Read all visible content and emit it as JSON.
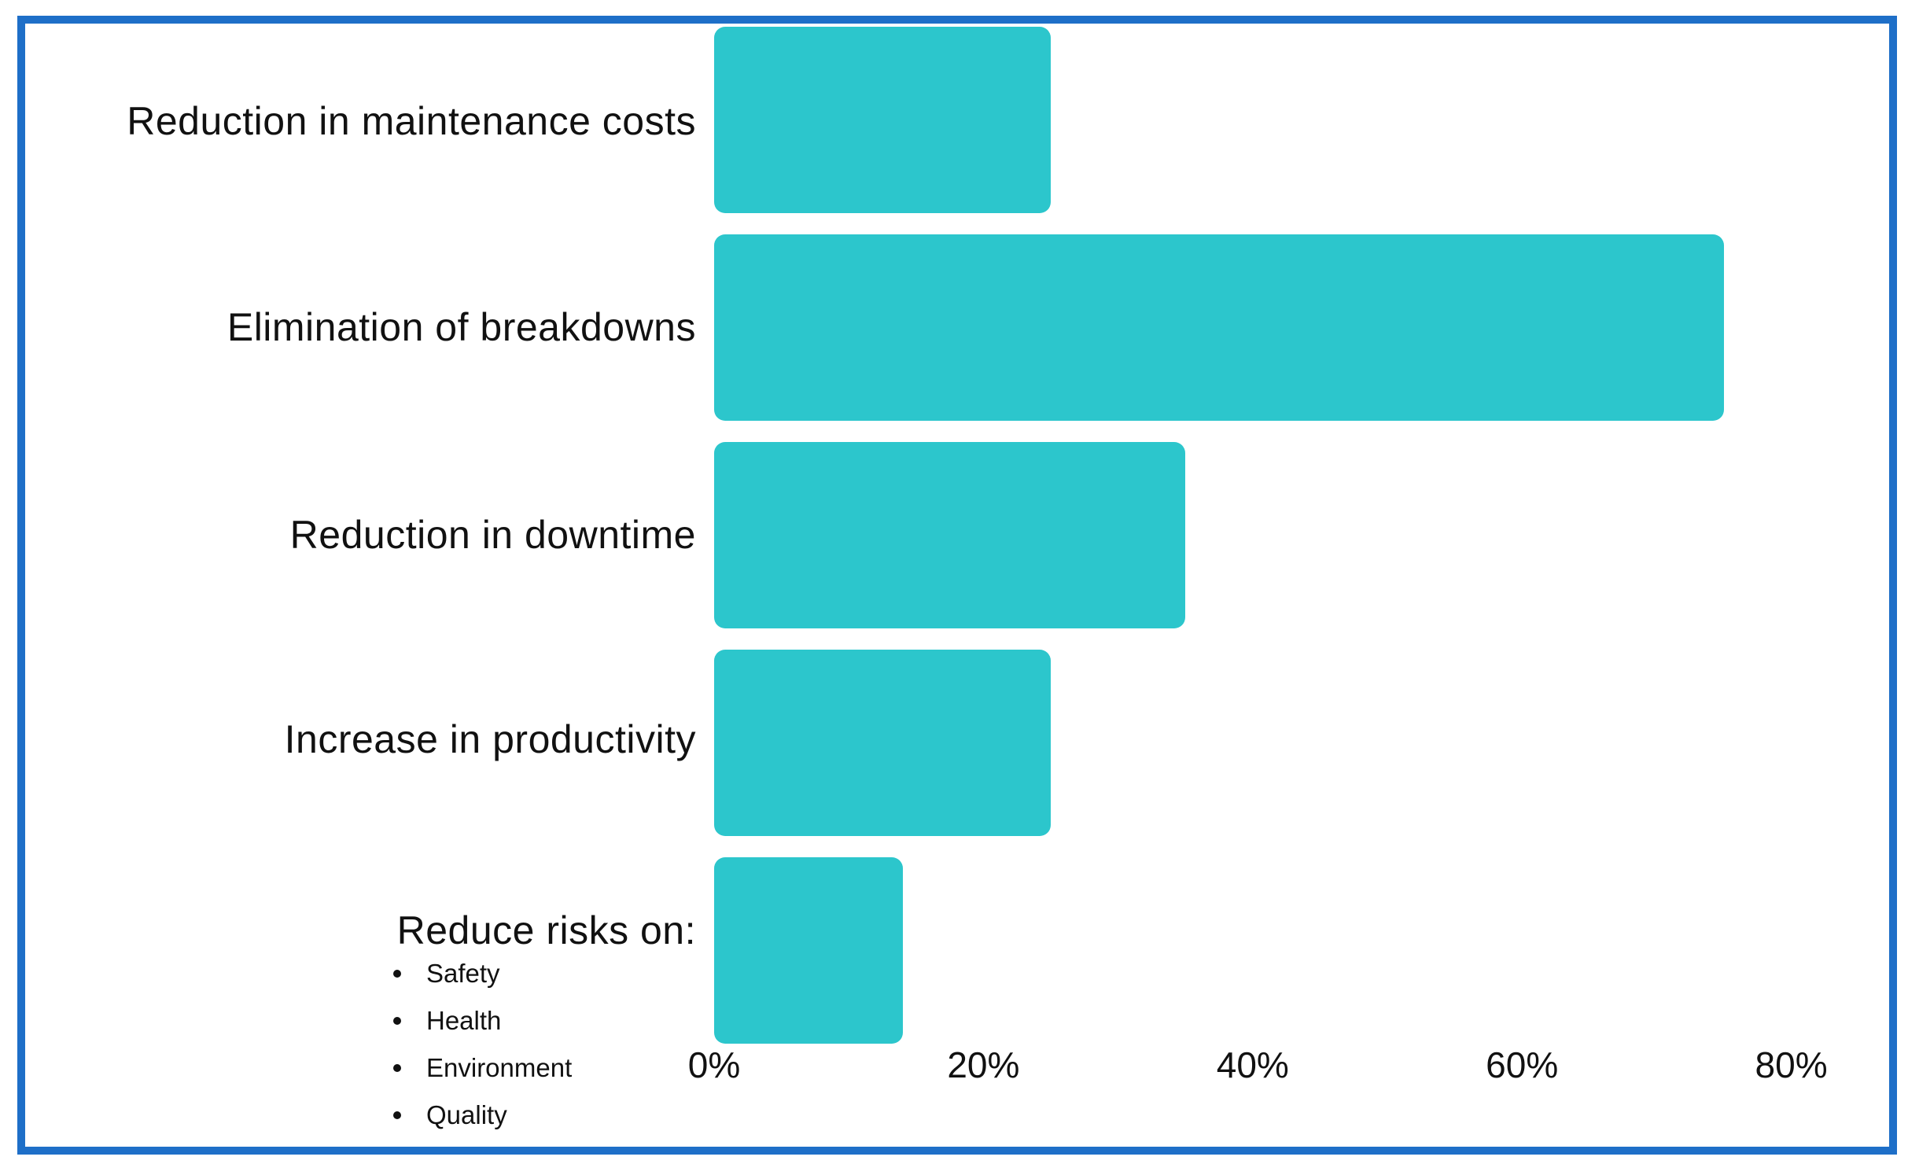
{
  "chart_data": {
    "type": "bar",
    "orientation": "horizontal",
    "title": "",
    "xlabel": "",
    "ylabel": "",
    "xlim": [
      0,
      87
    ],
    "grid": false,
    "legend": false,
    "unit": "%",
    "categories": [
      "Reduction in maintenance costs",
      "Elimination of breakdowns",
      "Reduction in downtime",
      "Increase in productivity",
      "Reduce risks on:"
    ],
    "values": [
      25,
      75,
      35,
      25,
      14
    ],
    "last_category_bullets": [
      "Safety",
      "Health",
      "Environment",
      "Quality"
    ],
    "x_ticks": [
      {
        "label": "0%",
        "value": 0
      },
      {
        "label": "20%",
        "value": 20
      },
      {
        "label": "40%",
        "value": 40
      },
      {
        "label": "60%",
        "value": 60
      },
      {
        "label": "80%",
        "value": 80
      }
    ],
    "colors": {
      "bar": "#2cc6cc",
      "frame": "#1e6fc8",
      "text": "#111111",
      "background": "#ffffff"
    }
  }
}
